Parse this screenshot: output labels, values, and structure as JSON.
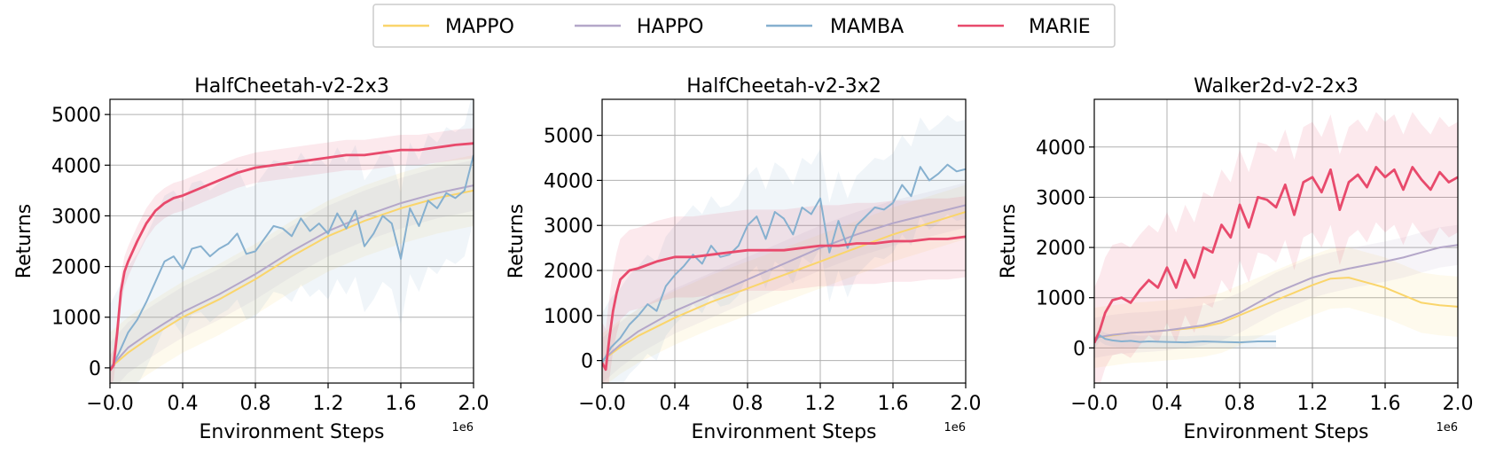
{
  "legend": [
    {
      "name": "MAPPO",
      "color": "#fad56b"
    },
    {
      "name": "HAPPO",
      "color": "#b4a7c9"
    },
    {
      "name": "MAMBA",
      "color": "#86b0cf"
    },
    {
      "name": "MARIE",
      "color": "#e84a6c"
    }
  ],
  "chart_data": [
    {
      "type": "line",
      "title": "HalfCheetah-v2-2x3",
      "xlabel": "Environment Steps",
      "ylabel": "Returns",
      "x_exponent": "1e6",
      "xlim": [
        -0.0,
        2.0
      ],
      "ylim": [
        -300,
        5300
      ],
      "xticks": [
        0.0,
        0.4,
        0.8,
        1.2,
        1.6,
        2.0
      ],
      "xtick_labels": [
        "−0.0",
        "0.4",
        "0.8",
        "1.2",
        "1.6",
        "2.0"
      ],
      "yticks": [
        0,
        1000,
        2000,
        3000,
        4000,
        5000
      ],
      "ytick_labels": [
        "0",
        "1000",
        "2000",
        "3000",
        "4000",
        "5000"
      ],
      "series": [
        {
          "name": "MAPPO",
          "x": [
            0,
            0.05,
            0.1,
            0.2,
            0.3,
            0.4,
            0.6,
            0.8,
            1.0,
            1.2,
            1.4,
            1.6,
            1.8,
            2.0
          ],
          "values": [
            0,
            150,
            300,
            550,
            780,
            1000,
            1350,
            1750,
            2200,
            2600,
            2900,
            3150,
            3350,
            3500
          ],
          "band": 700
        },
        {
          "name": "HAPPO",
          "x": [
            0,
            0.05,
            0.1,
            0.2,
            0.3,
            0.4,
            0.6,
            0.8,
            1.0,
            1.2,
            1.4,
            1.6,
            1.8,
            2.0
          ],
          "values": [
            0,
            200,
            400,
            650,
            880,
            1100,
            1450,
            1850,
            2300,
            2700,
            3000,
            3250,
            3450,
            3600
          ],
          "band": 500
        },
        {
          "name": "MAMBA",
          "x": [
            0,
            0.05,
            0.1,
            0.15,
            0.2,
            0.25,
            0.3,
            0.35,
            0.4,
            0.45,
            0.5,
            0.55,
            0.6,
            0.65,
            0.7,
            0.75,
            0.8,
            0.85,
            0.9,
            0.95,
            1.0,
            1.05,
            1.1,
            1.15,
            1.2,
            1.25,
            1.3,
            1.35,
            1.4,
            1.45,
            1.5,
            1.55,
            1.6,
            1.65,
            1.7,
            1.75,
            1.8,
            1.85,
            1.9,
            1.95,
            2.0
          ],
          "values": [
            -50,
            300,
            700,
            950,
            1300,
            1700,
            2100,
            2200,
            1950,
            2350,
            2400,
            2200,
            2350,
            2450,
            2650,
            2250,
            2300,
            2550,
            2800,
            2750,
            2600,
            2950,
            2700,
            2850,
            2650,
            3050,
            2750,
            3100,
            2400,
            2650,
            3000,
            2850,
            2150,
            3150,
            2800,
            3300,
            3150,
            3450,
            3350,
            3500,
            4200
          ],
          "band": 1300
        },
        {
          "name": "MARIE",
          "x": [
            0,
            0.02,
            0.04,
            0.06,
            0.08,
            0.1,
            0.15,
            0.2,
            0.25,
            0.3,
            0.35,
            0.4,
            0.5,
            0.6,
            0.7,
            0.8,
            0.9,
            1.0,
            1.1,
            1.2,
            1.3,
            1.4,
            1.5,
            1.6,
            1.7,
            1.8,
            1.9,
            2.0
          ],
          "values": [
            -50,
            50,
            700,
            1500,
            1900,
            2100,
            2500,
            2850,
            3100,
            3250,
            3350,
            3400,
            3550,
            3700,
            3850,
            3950,
            4000,
            4050,
            4100,
            4150,
            4200,
            4200,
            4250,
            4300,
            4300,
            4350,
            4400,
            4430
          ],
          "band": 300
        }
      ]
    },
    {
      "type": "line",
      "title": "HalfCheetah-v2-3x2",
      "xlabel": "Environment Steps",
      "ylabel": "Returns",
      "x_exponent": "1e6",
      "xlim": [
        -0.0,
        2.0
      ],
      "ylim": [
        -500,
        5800
      ],
      "xticks": [
        0.0,
        0.4,
        0.8,
        1.2,
        1.6,
        2.0
      ],
      "xtick_labels": [
        "−0.0",
        "0.4",
        "0.8",
        "1.2",
        "1.6",
        "2.0"
      ],
      "yticks": [
        0,
        1000,
        2000,
        3000,
        4000,
        5000
      ],
      "ytick_labels": [
        "0",
        "1000",
        "2000",
        "3000",
        "4000",
        "5000"
      ],
      "series": [
        {
          "name": "MAPPO",
          "x": [
            0,
            0.1,
            0.2,
            0.4,
            0.6,
            0.8,
            1.0,
            1.2,
            1.4,
            1.6,
            1.8,
            2.0
          ],
          "values": [
            0,
            300,
            550,
            950,
            1300,
            1600,
            1900,
            2200,
            2500,
            2800,
            3050,
            3300
          ],
          "band": 600
        },
        {
          "name": "HAPPO",
          "x": [
            0,
            0.1,
            0.2,
            0.4,
            0.6,
            0.8,
            1.0,
            1.2,
            1.4,
            1.6,
            1.8,
            2.0
          ],
          "values": [
            0,
            350,
            650,
            1100,
            1450,
            1800,
            2150,
            2500,
            2800,
            3050,
            3250,
            3450
          ],
          "band": 500
        },
        {
          "name": "MAMBA",
          "x": [
            0,
            0.05,
            0.1,
            0.15,
            0.2,
            0.25,
            0.3,
            0.35,
            0.4,
            0.45,
            0.5,
            0.55,
            0.6,
            0.65,
            0.7,
            0.75,
            0.8,
            0.85,
            0.9,
            0.95,
            1.0,
            1.05,
            1.1,
            1.15,
            1.2,
            1.25,
            1.3,
            1.35,
            1.4,
            1.45,
            1.5,
            1.55,
            1.6,
            1.65,
            1.7,
            1.75,
            1.8,
            1.85,
            1.9,
            1.95,
            2.0
          ],
          "values": [
            -50,
            300,
            500,
            800,
            1000,
            1250,
            1100,
            1650,
            1900,
            2100,
            2350,
            2150,
            2550,
            2300,
            2350,
            2550,
            3000,
            3200,
            2700,
            3300,
            3150,
            2800,
            3400,
            3250,
            3600,
            2400,
            3100,
            2500,
            3000,
            3200,
            3400,
            3350,
            3500,
            3900,
            3650,
            4300,
            4000,
            4150,
            4350,
            4200,
            4250
          ],
          "band": 1100
        },
        {
          "name": "MARIE",
          "x": [
            0,
            0.02,
            0.04,
            0.06,
            0.08,
            0.1,
            0.15,
            0.2,
            0.3,
            0.4,
            0.5,
            0.6,
            0.7,
            0.8,
            0.9,
            1.0,
            1.1,
            1.2,
            1.3,
            1.4,
            1.5,
            1.6,
            1.7,
            1.8,
            1.9,
            2.0
          ],
          "values": [
            -50,
            -200,
            500,
            1100,
            1500,
            1800,
            2000,
            2050,
            2200,
            2300,
            2300,
            2350,
            2400,
            2450,
            2450,
            2450,
            2500,
            2550,
            2550,
            2600,
            2600,
            2650,
            2650,
            2700,
            2700,
            2750
          ],
          "band": 900
        }
      ]
    },
    {
      "type": "line",
      "title": "Walker2d-v2-2x3",
      "xlabel": "Environment Steps",
      "ylabel": "Returns",
      "x_exponent": "1e6",
      "xlim": [
        -0.0,
        2.0
      ],
      "ylim": [
        -700,
        4950
      ],
      "xticks": [
        0.0,
        0.4,
        0.8,
        1.2,
        1.6,
        2.0
      ],
      "xtick_labels": [
        "−0.0",
        "0.4",
        "0.8",
        "1.2",
        "1.6",
        "2.0"
      ],
      "yticks": [
        0,
        1000,
        2000,
        3000,
        4000
      ],
      "ytick_labels": [
        "0",
        "1000",
        "2000",
        "3000",
        "4000"
      ],
      "series": [
        {
          "name": "MAPPO",
          "x": [
            0,
            0.1,
            0.2,
            0.3,
            0.4,
            0.5,
            0.6,
            0.7,
            0.8,
            0.9,
            1.0,
            1.1,
            1.2,
            1.3,
            1.4,
            1.5,
            1.6,
            1.7,
            1.8,
            1.9,
            2.0
          ],
          "values": [
            200,
            250,
            300,
            320,
            350,
            380,
            420,
            500,
            650,
            800,
            950,
            1100,
            1250,
            1380,
            1400,
            1300,
            1200,
            1050,
            900,
            850,
            820
          ],
          "band": 600
        },
        {
          "name": "HAPPO",
          "x": [
            0,
            0.1,
            0.2,
            0.3,
            0.4,
            0.5,
            0.6,
            0.7,
            0.8,
            0.9,
            1.0,
            1.1,
            1.2,
            1.3,
            1.4,
            1.5,
            1.6,
            1.7,
            1.8,
            1.9,
            2.0
          ],
          "values": [
            200,
            260,
            300,
            320,
            350,
            400,
            450,
            550,
            700,
            900,
            1100,
            1250,
            1400,
            1500,
            1580,
            1650,
            1720,
            1800,
            1900,
            2000,
            2050
          ],
          "band": 400
        },
        {
          "name": "MAMBA",
          "x": [
            0,
            0.03,
            0.06,
            0.1,
            0.15,
            0.2,
            0.25,
            0.3,
            0.4,
            0.5,
            0.6,
            0.7,
            0.8,
            0.9,
            1.0
          ],
          "values": [
            100,
            250,
            180,
            150,
            130,
            140,
            120,
            130,
            120,
            110,
            130,
            120,
            110,
            130,
            130
          ],
          "band": 120
        },
        {
          "name": "MARIE",
          "x": [
            0,
            0.03,
            0.06,
            0.1,
            0.15,
            0.2,
            0.25,
            0.3,
            0.35,
            0.4,
            0.45,
            0.5,
            0.55,
            0.6,
            0.65,
            0.7,
            0.75,
            0.8,
            0.85,
            0.9,
            0.95,
            1.0,
            1.05,
            1.1,
            1.15,
            1.2,
            1.25,
            1.3,
            1.35,
            1.4,
            1.45,
            1.5,
            1.55,
            1.6,
            1.65,
            1.7,
            1.75,
            1.8,
            1.85,
            1.9,
            1.95,
            2.0
          ],
          "values": [
            100,
            350,
            700,
            950,
            1000,
            900,
            1150,
            1350,
            1200,
            1600,
            1200,
            1750,
            1400,
            2000,
            1900,
            2450,
            2200,
            2850,
            2400,
            3000,
            2950,
            2800,
            3250,
            2650,
            3300,
            3400,
            3100,
            3550,
            2750,
            3300,
            3450,
            3200,
            3600,
            3400,
            3550,
            3150,
            3600,
            3350,
            3150,
            3500,
            3300,
            3400
          ],
          "band": 1100
        }
      ]
    }
  ]
}
